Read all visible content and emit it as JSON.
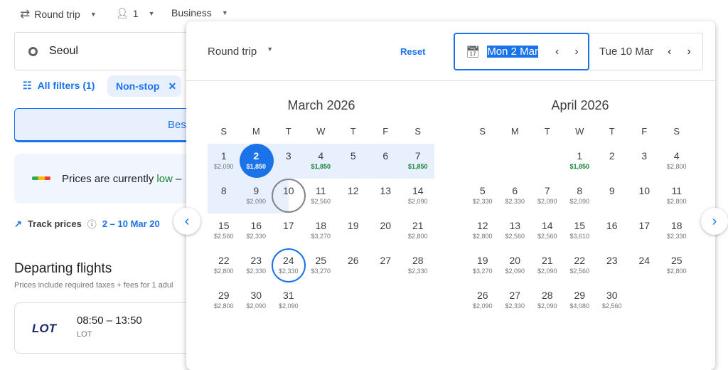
{
  "search": {
    "trip_type": "Round trip",
    "passengers": "1",
    "cabin": "Business",
    "origin": "Seoul"
  },
  "filters": {
    "all_filters": "All filters (1)",
    "chip": "Non-stop"
  },
  "tabs": {
    "best": "Bes"
  },
  "insight": {
    "prefix": "Prices are currently ",
    "level": "low",
    "suffix": " –"
  },
  "track": {
    "label": "Track prices",
    "dates": "2 – 10 Mar 20"
  },
  "departing": {
    "title": "Departing flights",
    "subtitle": "Prices include required taxes + fees for 1 adul"
  },
  "flight": {
    "airline_logo": "LOT",
    "times": "08:50 – 13:50",
    "airline": "LOT"
  },
  "picker": {
    "trip_type": "Round trip",
    "reset": "Reset",
    "depart": "Mon 2 Mar",
    "return": "Tue 10 Mar"
  },
  "colors": {
    "accent": "#1a73e8",
    "low": "#188038",
    "range": "#e8f0fe"
  },
  "weekdays": [
    "S",
    "M",
    "T",
    "W",
    "T",
    "F",
    "S"
  ],
  "months": [
    {
      "title": "March 2026",
      "start_weekday": 0,
      "days": [
        {
          "d": "1",
          "p": "$2,090"
        },
        {
          "d": "2",
          "p": "$1,850",
          "low": true,
          "selected": true
        },
        {
          "d": "3"
        },
        {
          "d": "4",
          "p": "$1,850",
          "low": true
        },
        {
          "d": "5"
        },
        {
          "d": "6"
        },
        {
          "d": "7",
          "p": "$1,850",
          "low": true
        },
        {
          "d": "8"
        },
        {
          "d": "9",
          "p": "$2,090"
        },
        {
          "d": "10",
          "end": true
        },
        {
          "d": "11",
          "p": "$2,560"
        },
        {
          "d": "12"
        },
        {
          "d": "13"
        },
        {
          "d": "14",
          "p": "$2,090"
        },
        {
          "d": "15",
          "p": "$2,560"
        },
        {
          "d": "16",
          "p": "$2,330"
        },
        {
          "d": "17"
        },
        {
          "d": "18",
          "p": "$3,270"
        },
        {
          "d": "19"
        },
        {
          "d": "20"
        },
        {
          "d": "21",
          "p": "$2,800"
        },
        {
          "d": "22",
          "p": "$2,800"
        },
        {
          "d": "23",
          "p": "$2,330"
        },
        {
          "d": "24",
          "p": "$2,330",
          "hover": true
        },
        {
          "d": "25",
          "p": "$3,270"
        },
        {
          "d": "26"
        },
        {
          "d": "27"
        },
        {
          "d": "28",
          "p": "$2,330"
        },
        {
          "d": "29",
          "p": "$2,800"
        },
        {
          "d": "30",
          "p": "$2,090"
        },
        {
          "d": "31",
          "p": "$2,090"
        }
      ]
    },
    {
      "title": "April 2026",
      "start_weekday": 3,
      "days": [
        {
          "d": "1",
          "p": "$1,850",
          "low": true
        },
        {
          "d": "2"
        },
        {
          "d": "3"
        },
        {
          "d": "4",
          "p": "$2,800"
        },
        {
          "d": "5",
          "p": "$2,330"
        },
        {
          "d": "6",
          "p": "$2,330"
        },
        {
          "d": "7",
          "p": "$2,090"
        },
        {
          "d": "8",
          "p": "$2,090"
        },
        {
          "d": "9"
        },
        {
          "d": "10"
        },
        {
          "d": "11",
          "p": "$2,800"
        },
        {
          "d": "12",
          "p": "$2,800"
        },
        {
          "d": "13",
          "p": "$2,560"
        },
        {
          "d": "14",
          "p": "$2,560"
        },
        {
          "d": "15",
          "p": "$3,610"
        },
        {
          "d": "16"
        },
        {
          "d": "17"
        },
        {
          "d": "18",
          "p": "$2,330"
        },
        {
          "d": "19",
          "p": "$3,270"
        },
        {
          "d": "20",
          "p": "$2,090"
        },
        {
          "d": "21",
          "p": "$2,090"
        },
        {
          "d": "22",
          "p": "$2,560"
        },
        {
          "d": "23"
        },
        {
          "d": "24"
        },
        {
          "d": "25",
          "p": "$2,800"
        },
        {
          "d": "26",
          "p": "$2,090"
        },
        {
          "d": "27",
          "p": "$2,330"
        },
        {
          "d": "28",
          "p": "$2,090"
        },
        {
          "d": "29",
          "p": "$4,080"
        },
        {
          "d": "30",
          "p": "$2,560"
        }
      ]
    }
  ]
}
